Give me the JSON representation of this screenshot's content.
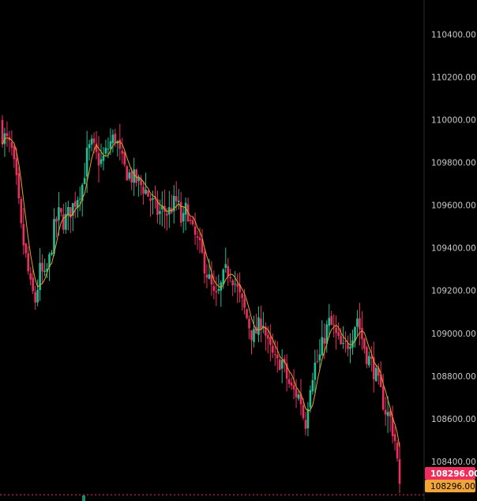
{
  "chart_data": {
    "type": "candlestick",
    "y_axis": {
      "position": "right",
      "ticks": [
        "110400.00",
        "110200.00",
        "110000.00",
        "109800.00",
        "109600.00",
        "109400.00",
        "109200.00",
        "109000.00",
        "108800.00",
        "108600.00",
        "108400.00"
      ],
      "range": [
        108215,
        110560
      ]
    },
    "grid": false,
    "up_color": "#1fbf94",
    "down_color": "#ec2f63",
    "ma_color": "#e6a21a",
    "last_price_label": "108296.00",
    "last_price_label_color": "#ee2f5e",
    "ma_value_label": "108296.00",
    "ma_value_label_color": "#f0a43a",
    "last_price": 108296,
    "close_path": [
      109930,
      109900,
      109850,
      109700,
      109480,
      109350,
      109210,
      109150,
      109300,
      109250,
      109350,
      109500,
      109560,
      109520,
      109560,
      109600,
      109650,
      109700,
      109850,
      109880,
      109820,
      109800,
      109850,
      109900,
      109920,
      109820,
      109760,
      109740,
      109720,
      109700,
      109680,
      109640,
      109600,
      109560,
      109580,
      109560,
      109600,
      109620,
      109500,
      109600,
      109480,
      109440,
      109380,
      109300,
      109230,
      109150,
      109200,
      109280,
      109300,
      109250,
      109180,
      109120,
      109050,
      108980,
      109020,
      109080,
      108950,
      108900,
      108850,
      108880,
      108800,
      108740,
      108720,
      108700,
      108560,
      108760,
      108850,
      108880,
      108980,
      109050,
      109020,
      108960,
      108920,
      108950,
      109000,
      109080,
      108980,
      108900,
      108860,
      108800,
      108720,
      108640,
      108600,
      108500,
      108300
    ],
    "candle_count": 170
  }
}
